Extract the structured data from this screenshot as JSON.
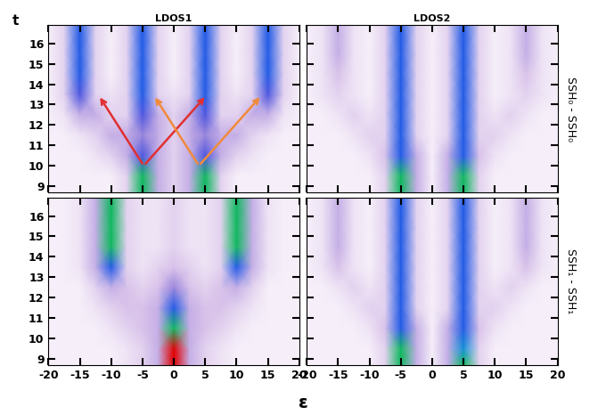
{
  "xlabel": "ε",
  "ylabel": "t",
  "chart_data": [
    {
      "type": "heatmap",
      "title": "LDOS1",
      "tick_labels": "y",
      "x": [
        -20,
        -17.5,
        -15,
        -12.5,
        -10,
        -7.5,
        -5,
        -2.5,
        0,
        2.5,
        5,
        7.5,
        10,
        12.5,
        15,
        17.5,
        20
      ],
      "y": [
        8.7,
        9.5,
        10.5,
        11.5,
        12.5,
        13.5,
        14.5,
        15.5,
        16.9
      ],
      "values": [
        [
          1,
          1,
          1,
          1,
          1,
          2,
          8,
          3,
          2,
          3,
          8,
          2,
          1,
          1,
          1,
          1,
          1
        ],
        [
          1,
          1,
          1,
          1,
          1,
          2,
          8,
          3,
          2,
          3,
          8,
          2,
          1,
          1,
          1,
          1,
          1
        ],
        [
          1,
          1,
          1,
          1.5,
          2,
          3,
          5,
          3,
          2,
          3,
          5,
          3,
          2,
          1.5,
          1,
          1,
          1
        ],
        [
          1,
          1,
          1.5,
          2,
          3,
          3,
          4,
          3,
          2,
          3,
          4,
          3,
          3,
          2,
          1.5,
          1,
          1
        ],
        [
          1,
          1.5,
          3,
          3,
          2,
          2,
          5,
          3,
          2,
          3,
          5,
          2,
          2,
          3,
          3,
          1.5,
          1
        ],
        [
          1,
          2,
          5,
          2,
          1.5,
          2,
          6,
          2,
          1.5,
          2,
          6,
          2,
          1.5,
          2,
          5,
          2,
          1
        ],
        [
          1,
          2,
          6,
          2,
          1,
          2,
          6,
          2,
          1,
          2,
          6,
          2,
          1,
          2,
          6,
          2,
          1
        ],
        [
          1,
          2,
          6,
          2,
          1,
          2,
          6,
          2,
          1,
          2,
          6,
          2,
          1,
          2,
          6,
          2,
          1
        ],
        [
          1,
          2,
          6,
          2,
          1,
          2,
          6,
          2,
          1,
          2,
          6,
          2,
          1,
          2,
          6,
          2,
          1
        ]
      ],
      "zlim": [
        0,
        10
      ],
      "xlim": [
        -20,
        20
      ],
      "ylim": [
        8.7,
        16.9
      ],
      "xticks": [
        -20,
        -15,
        -10,
        -5,
        0,
        5,
        10,
        15,
        20
      ],
      "yticks": [
        9,
        10,
        11,
        12,
        13,
        14,
        15,
        16
      ]
    },
    {
      "type": "heatmap",
      "title": "LDOS2",
      "side_label": "SSH₀ - SSH₀",
      "tick_labels": false,
      "x": [
        -20,
        -17.5,
        -15,
        -12.5,
        -10,
        -7.5,
        -5,
        -2.5,
        0,
        2.5,
        5,
        7.5,
        10,
        12.5,
        15,
        17.5,
        20
      ],
      "y": [
        8.7,
        9.5,
        10.5,
        11.5,
        12.5,
        13.5,
        14.5,
        15.5,
        16.9
      ],
      "values": [
        [
          1,
          1,
          1,
          1,
          1,
          2,
          8,
          3,
          1,
          3,
          8,
          2,
          1,
          1,
          1,
          1,
          1
        ],
        [
          1,
          1,
          1,
          1,
          1,
          2,
          8,
          3,
          1,
          3,
          8,
          2,
          1,
          1,
          1,
          1,
          1
        ],
        [
          1,
          1,
          1,
          1,
          1.5,
          2.5,
          6,
          3,
          1,
          3,
          6,
          2.5,
          1.5,
          1,
          1,
          1,
          1
        ],
        [
          1,
          1,
          1,
          1.5,
          2,
          2,
          6,
          2,
          1,
          2,
          6,
          2,
          2,
          1.5,
          1,
          1,
          1
        ],
        [
          1,
          1,
          1.5,
          2,
          1.5,
          2,
          6,
          2,
          1,
          2,
          6,
          2,
          1.5,
          2,
          1.5,
          1,
          1
        ],
        [
          1,
          1.5,
          2,
          1.5,
          1,
          2,
          6,
          2,
          1,
          2,
          6,
          2,
          1,
          1.5,
          2,
          1.5,
          1
        ],
        [
          1,
          1.5,
          2.5,
          1.5,
          1,
          2,
          6,
          2,
          1,
          2,
          6,
          2,
          1,
          1.5,
          2.5,
          1.5,
          1
        ],
        [
          1,
          1.5,
          3,
          1.5,
          1,
          2,
          6,
          2,
          1,
          2,
          6,
          2,
          1,
          1.5,
          3,
          1.5,
          1
        ],
        [
          1,
          1.5,
          3,
          1.5,
          1,
          2,
          6,
          2,
          1,
          2,
          6,
          2,
          1,
          1.5,
          3,
          1.5,
          1
        ]
      ],
      "zlim": [
        0,
        10
      ],
      "xlim": [
        -20,
        20
      ],
      "ylim": [
        8.7,
        16.9
      ],
      "xticks": [
        -20,
        -15,
        -10,
        -5,
        0,
        5,
        10,
        15,
        20
      ],
      "yticks": [
        9,
        10,
        11,
        12,
        13,
        14,
        15,
        16
      ]
    },
    {
      "type": "heatmap",
      "tick_labels": true,
      "x": [
        -20,
        -17.5,
        -15,
        -12.5,
        -10,
        -7.5,
        -5,
        -2.5,
        0,
        2.5,
        5,
        7.5,
        10,
        12.5,
        15,
        17.5,
        20
      ],
      "y": [
        8.7,
        9.5,
        10.5,
        11.5,
        12.5,
        13.5,
        14.5,
        15.5,
        16.9
      ],
      "values": [
        [
          1,
          1,
          1,
          1,
          1,
          1.5,
          2,
          3,
          10,
          3,
          2,
          1.5,
          1,
          1,
          1,
          1,
          1
        ],
        [
          1,
          1,
          1,
          1,
          1,
          1.5,
          2,
          3,
          10,
          3,
          2,
          1.5,
          1,
          1,
          1,
          1,
          1
        ],
        [
          1,
          1,
          1,
          1,
          1.5,
          2,
          2.5,
          3,
          8,
          3,
          2.5,
          2,
          1.5,
          1,
          1,
          1,
          1
        ],
        [
          1,
          1,
          1,
          1.5,
          2,
          2.5,
          2.5,
          3,
          6,
          3,
          2.5,
          2.5,
          2,
          1.5,
          1,
          1,
          1
        ],
        [
          1,
          1,
          1,
          2,
          3,
          2.5,
          2,
          2.5,
          4,
          2.5,
          2,
          2.5,
          3,
          2,
          1,
          1,
          1
        ],
        [
          1,
          1,
          1.5,
          3,
          6,
          2,
          1.5,
          2,
          2.5,
          2,
          1.5,
          2,
          6,
          3,
          1.5,
          1,
          1
        ],
        [
          1,
          1,
          1.5,
          3,
          8,
          2,
          1.5,
          1.5,
          2,
          1.5,
          1.5,
          2,
          8,
          3,
          1.5,
          1,
          1
        ],
        [
          1,
          1,
          1.5,
          3,
          8,
          2,
          1.5,
          1.5,
          2,
          1.5,
          1.5,
          2,
          8,
          3,
          1.5,
          1,
          1
        ],
        [
          1,
          1,
          1.5,
          3,
          8,
          2,
          1.5,
          1.5,
          2,
          1.5,
          1.5,
          2,
          8,
          3,
          1.5,
          1,
          1
        ]
      ],
      "zlim": [
        0,
        10
      ],
      "xlim": [
        -20,
        20
      ],
      "ylim": [
        8.7,
        16.9
      ],
      "xticks": [
        -20,
        -15,
        -10,
        -5,
        0,
        5,
        10,
        15,
        20
      ],
      "yticks": [
        9,
        10,
        11,
        12,
        13,
        14,
        15,
        16
      ]
    },
    {
      "type": "heatmap",
      "side_label": "SSH₁ - SSH₁",
      "tick_labels": "x",
      "x": [
        -20,
        -17.5,
        -15,
        -12.5,
        -10,
        -7.5,
        -5,
        -2.5,
        0,
        2.5,
        5,
        7.5,
        10,
        12.5,
        15,
        17.5,
        20
      ],
      "y": [
        8.7,
        9.5,
        10.5,
        11.5,
        12.5,
        13.5,
        14.5,
        15.5,
        16.9
      ],
      "values": [
        [
          1,
          1,
          1,
          1,
          1,
          2,
          8,
          3,
          1,
          3,
          8,
          2,
          1,
          1,
          1,
          1,
          1
        ],
        [
          1,
          1,
          1,
          1,
          1,
          2,
          8,
          3,
          1,
          3,
          7,
          2,
          1,
          1,
          1,
          1,
          1
        ],
        [
          1,
          1,
          1,
          1,
          1.5,
          2.5,
          6,
          3,
          1,
          3,
          6,
          2.5,
          1.5,
          1,
          1,
          1,
          1
        ],
        [
          1,
          1,
          1,
          1.5,
          2,
          2,
          6,
          2,
          1,
          2,
          6,
          2,
          2,
          1.5,
          1,
          1,
          1
        ],
        [
          1,
          1,
          1.5,
          2,
          1.5,
          2,
          6,
          2,
          1,
          2,
          6,
          2,
          1.5,
          2,
          1.5,
          1,
          1
        ],
        [
          1,
          1.5,
          2.5,
          1.5,
          1,
          2,
          6,
          2,
          1,
          2,
          6,
          2,
          1,
          1.5,
          2.5,
          1.5,
          1
        ],
        [
          1,
          1.5,
          3,
          1.5,
          1,
          2,
          6,
          2,
          1,
          2,
          6,
          2,
          1,
          1.5,
          3,
          1.5,
          1
        ],
        [
          1,
          1.5,
          3,
          1.5,
          1,
          2,
          6,
          2,
          1,
          2,
          6,
          2,
          1,
          1.5,
          3,
          1.5,
          1
        ],
        [
          1,
          1.5,
          3,
          1.5,
          1,
          2,
          6,
          2,
          1,
          2,
          6,
          2,
          1,
          1.5,
          3,
          1.5,
          1
        ]
      ],
      "zlim": [
        0,
        10
      ],
      "xlim": [
        -20,
        20
      ],
      "ylim": [
        8.7,
        16.9
      ],
      "xticks": [
        -20,
        -15,
        -10,
        -5,
        0,
        5,
        10,
        15,
        20
      ],
      "yticks": [
        9,
        10,
        11,
        12,
        13,
        14,
        15,
        16
      ]
    }
  ]
}
